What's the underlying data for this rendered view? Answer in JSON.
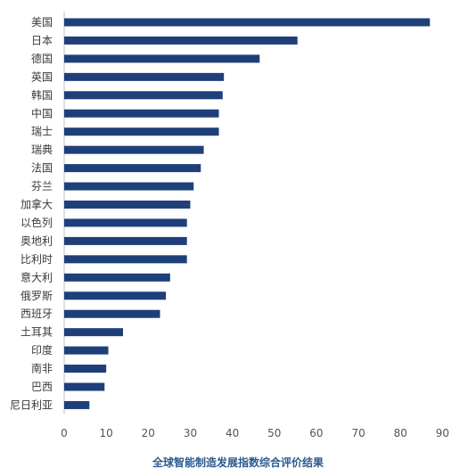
{
  "chart_data": {
    "type": "bar",
    "orientation": "horizontal",
    "categories": [
      "美国",
      "日本",
      "德国",
      "英国",
      "韩国",
      "中国",
      "瑞士",
      "瑞典",
      "法国",
      "芬兰",
      "加拿大",
      "以色列",
      "奥地利",
      "比利时",
      "意大利",
      "俄罗斯",
      "西班牙",
      "土耳其",
      "印度",
      "南非",
      "巴西",
      "尼日利亚"
    ],
    "values": [
      87,
      55.5,
      46.5,
      38,
      37.7,
      36.8,
      36.8,
      33.2,
      32.5,
      30.8,
      30,
      29.2,
      29.2,
      29.2,
      25.2,
      24.2,
      22.8,
      14,
      10.5,
      10,
      9.6,
      6
    ],
    "xlim": [
      0,
      95
    ],
    "xticks": [
      0,
      10,
      20,
      30,
      40,
      50,
      60,
      70,
      80,
      90
    ],
    "xlabel": "全球智能制造发展指数综合评价结果",
    "bar_color": "#1f3f7a",
    "grid": false,
    "legend": "none"
  }
}
